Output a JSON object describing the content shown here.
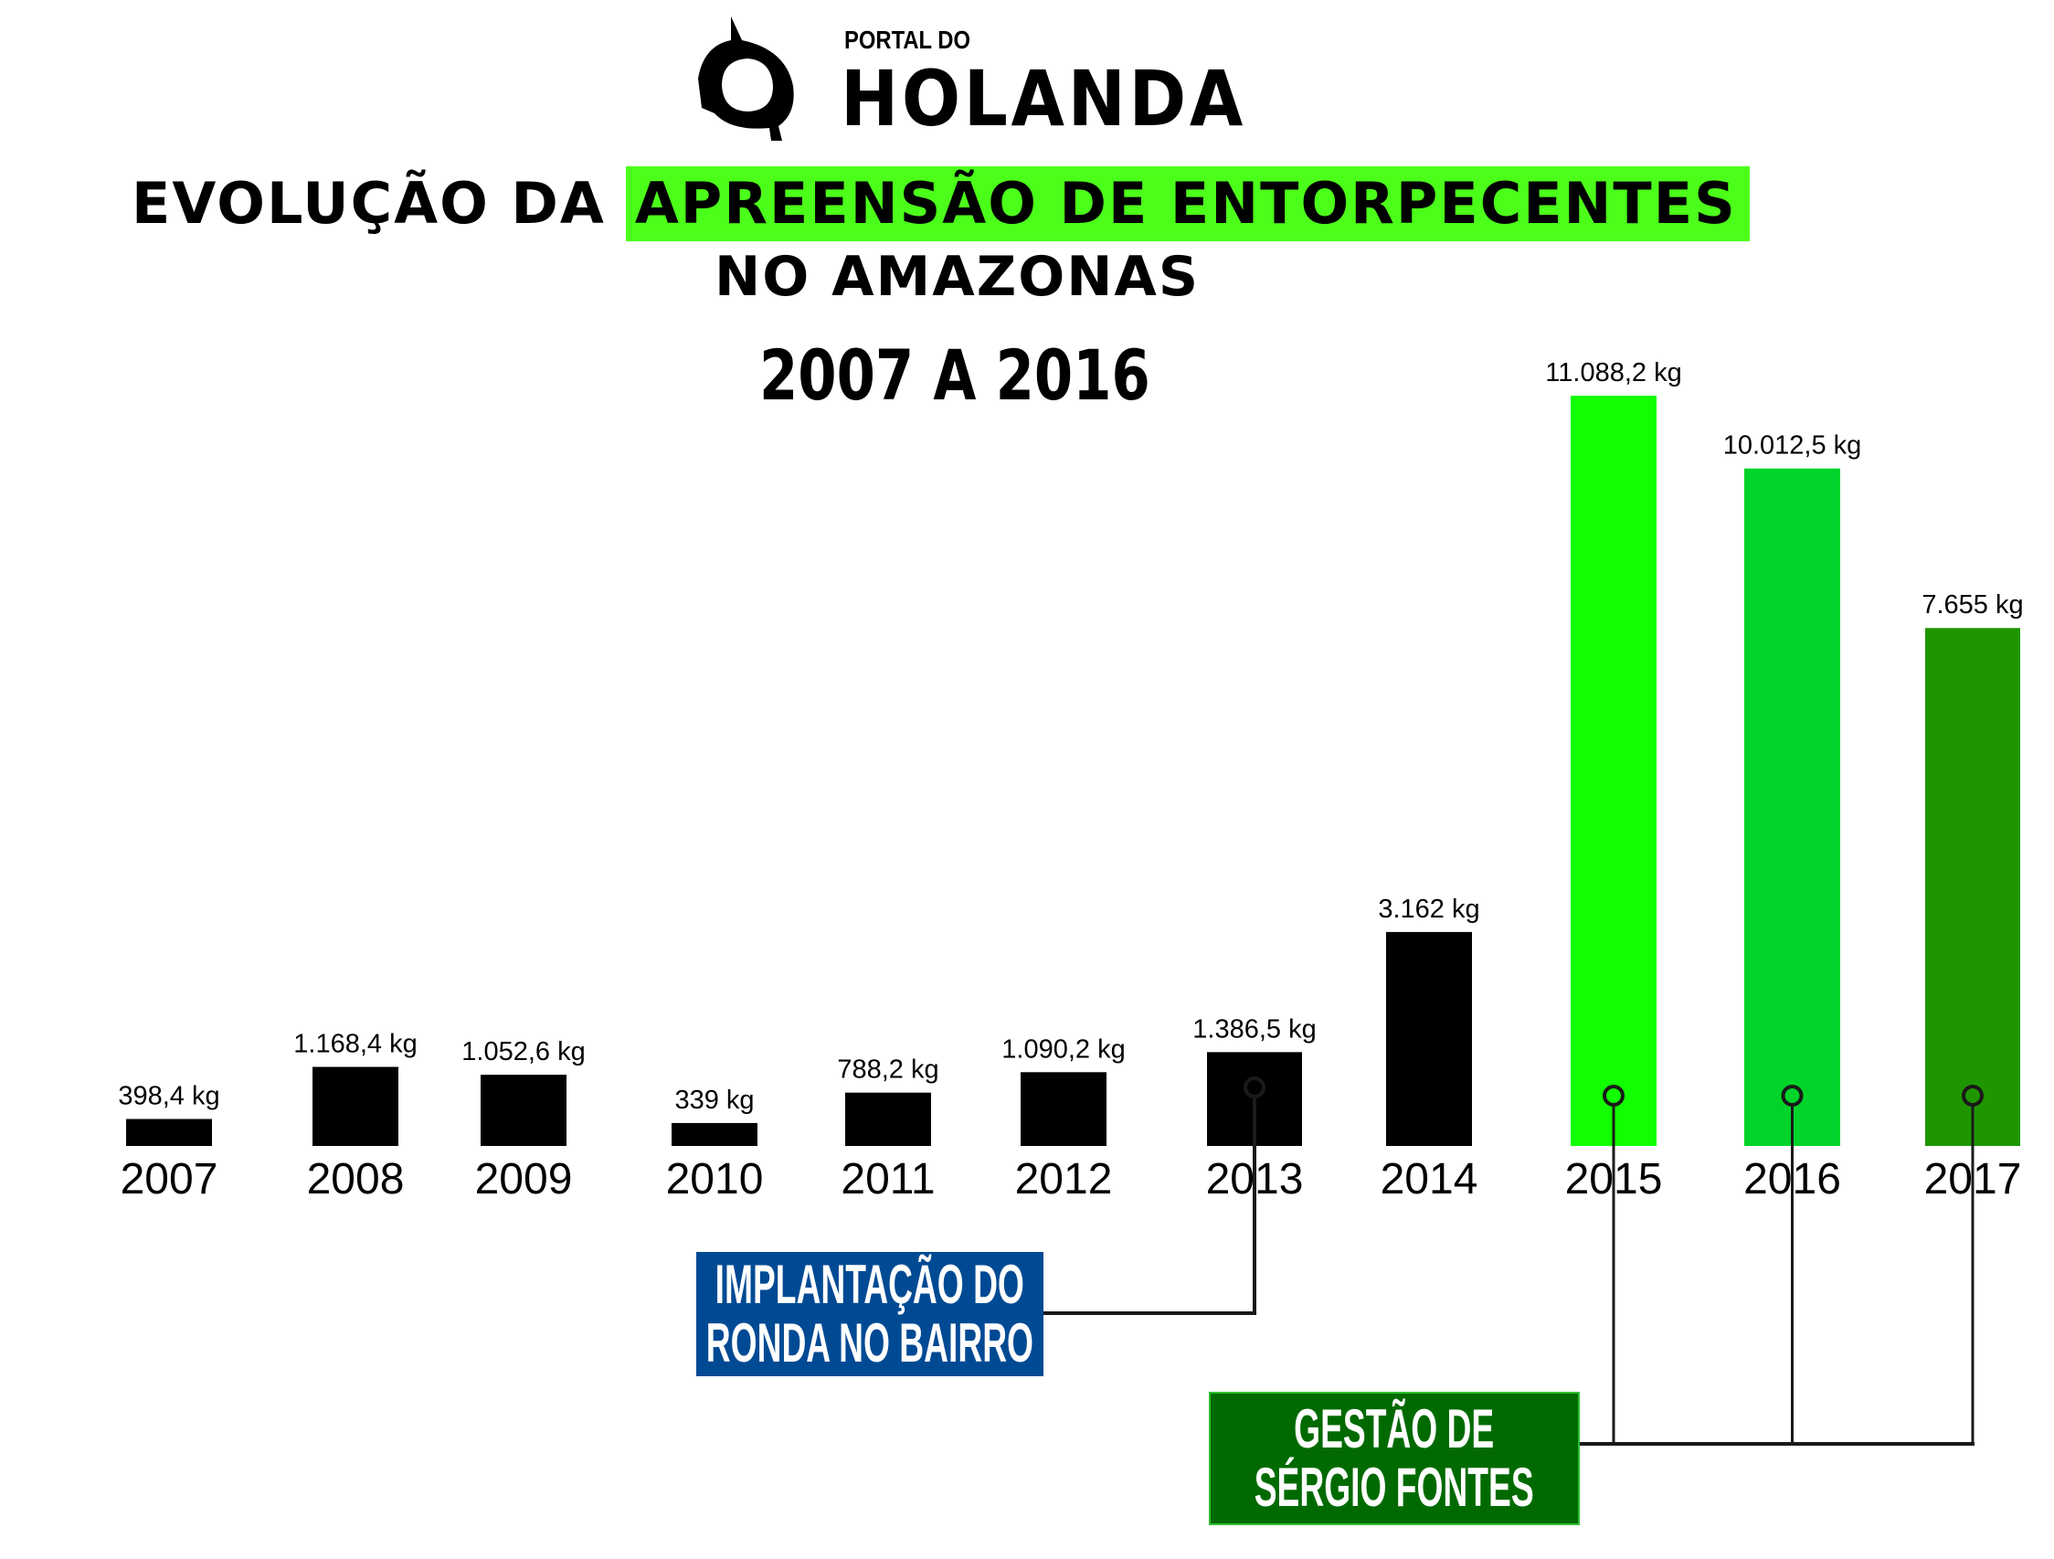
{
  "logo": {
    "text_small": "PORTAL DO",
    "text_large": "HOLANDA"
  },
  "title": {
    "line1_prefix": "EVOLUÇÃO DA",
    "line1_highlight": "APREENSÃO DE ENTORPECENTES",
    "line2": "NO AMAZONAS",
    "period": "2007 A 2016",
    "highlight_color": "#4cff1a"
  },
  "annotations": {
    "ronda": {
      "line1": "IMPLANTAÇÃO DO",
      "line2": "RONDA NO BAIRRO",
      "color": "#004a94",
      "year": "2013"
    },
    "sergio": {
      "line1": "GESTÃO DE",
      "line2": "SÉRGIO FONTES",
      "color": "#006a00",
      "years": [
        "2015",
        "2016",
        "2017"
      ]
    }
  },
  "chart_data": {
    "type": "bar",
    "title": "EVOLUÇÃO DA APREENSÃO DE ENTORPECENTES NO AMAZONAS 2007 A 2016",
    "xlabel": "",
    "ylabel": "",
    "unit": "kg",
    "grid": false,
    "categories": [
      "2007",
      "2008",
      "2009",
      "2010",
      "2011",
      "2012",
      "2013",
      "2014",
      "2015",
      "2016",
      "2017"
    ],
    "values": [
      398.4,
      1168.4,
      1052.6,
      339,
      788.2,
      1090.2,
      1386.5,
      3162,
      11088.2,
      10012.5,
      7655
    ],
    "labels": [
      "398,4 kg",
      "1.168,4 kg",
      "1.052,6 kg",
      "339 kg",
      "788,2 kg",
      "1.090,2 kg",
      "1.386,5 kg",
      "3.162 kg",
      "11.088,2 kg",
      "10.012,5 kg",
      "7.655 kg"
    ],
    "colors": [
      "#000000",
      "#000000",
      "#000000",
      "#000000",
      "#000000",
      "#000000",
      "#000000",
      "#000000",
      "#11ff00",
      "#00d42a",
      "#1f9600"
    ]
  }
}
